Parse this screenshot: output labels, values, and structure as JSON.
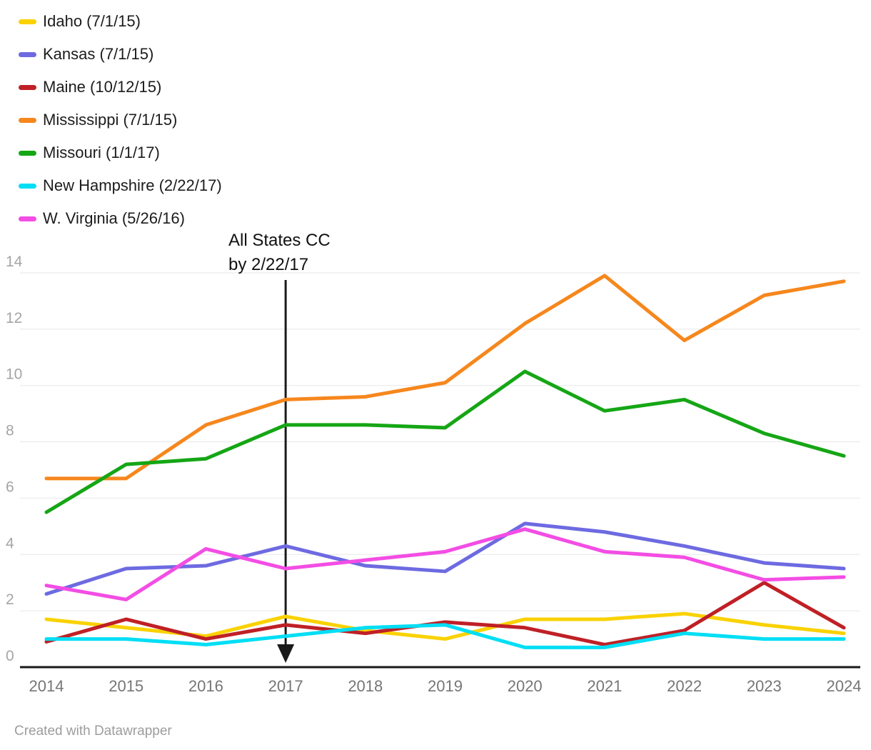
{
  "chart_data": {
    "type": "line",
    "x": [
      2014,
      2015,
      2016,
      2017,
      2018,
      2019,
      2020,
      2021,
      2022,
      2023,
      2024
    ],
    "ylim": [
      0,
      14
    ],
    "yticks": [
      0,
      2,
      4,
      6,
      8,
      10,
      12,
      14
    ],
    "grid": "horizontal",
    "legend_position": "top-left",
    "series": [
      {
        "name": "Idaho",
        "effective_date": "7/1/15",
        "label": "Idaho (7/1/15)",
        "color": "#FAD201",
        "values": [
          1.7,
          1.4,
          1.1,
          1.8,
          1.3,
          1.0,
          1.7,
          1.7,
          1.9,
          1.5,
          1.2
        ]
      },
      {
        "name": "Kansas",
        "effective_date": "7/1/15",
        "label": "Kansas (7/1/15)",
        "color": "#6D6AE1",
        "values": [
          2.6,
          3.5,
          3.6,
          4.3,
          3.6,
          3.4,
          5.1,
          4.8,
          4.3,
          3.7,
          3.5
        ]
      },
      {
        "name": "Maine",
        "effective_date": "10/12/15",
        "label": "Maine (10/12/15)",
        "color": "#BF2026",
        "values": [
          0.9,
          1.7,
          1.0,
          1.5,
          1.2,
          1.6,
          1.4,
          0.8,
          1.3,
          3.0,
          1.4
        ]
      },
      {
        "name": "Mississippi",
        "effective_date": "7/1/15",
        "label": "Mississippi (7/1/15)",
        "color": "#F6871D",
        "values": [
          6.7,
          6.7,
          8.6,
          9.5,
          9.6,
          10.1,
          12.2,
          13.9,
          11.6,
          13.2,
          13.7
        ]
      },
      {
        "name": "Missouri",
        "effective_date": "1/1/17",
        "label": "Missouri (1/1/17)",
        "color": "#15A615",
        "values": [
          5.5,
          7.2,
          7.4,
          8.6,
          8.6,
          8.5,
          10.5,
          9.1,
          9.5,
          8.3,
          7.5
        ]
      },
      {
        "name": "New Hampshire",
        "effective_date": "2/22/17",
        "label": "New Hampshire (2/22/17)",
        "color": "#00DEF5",
        "values": [
          1.0,
          1.0,
          0.8,
          1.1,
          1.4,
          1.5,
          0.7,
          0.7,
          1.2,
          1.0,
          1.0
        ]
      },
      {
        "name": "W. Virginia",
        "effective_date": "5/26/16",
        "label": "W. Virginia (5/26/16)",
        "color": "#F34DE4",
        "values": [
          2.9,
          2.4,
          4.2,
          3.5,
          3.8,
          4.1,
          4.9,
          4.1,
          3.9,
          3.1,
          3.2
        ]
      }
    ],
    "annotation": {
      "line1": "All States CC",
      "line2": "by 2/22/17",
      "arrow_at_x": 2017
    }
  },
  "footer": {
    "credit": "Created with Datawrapper"
  }
}
